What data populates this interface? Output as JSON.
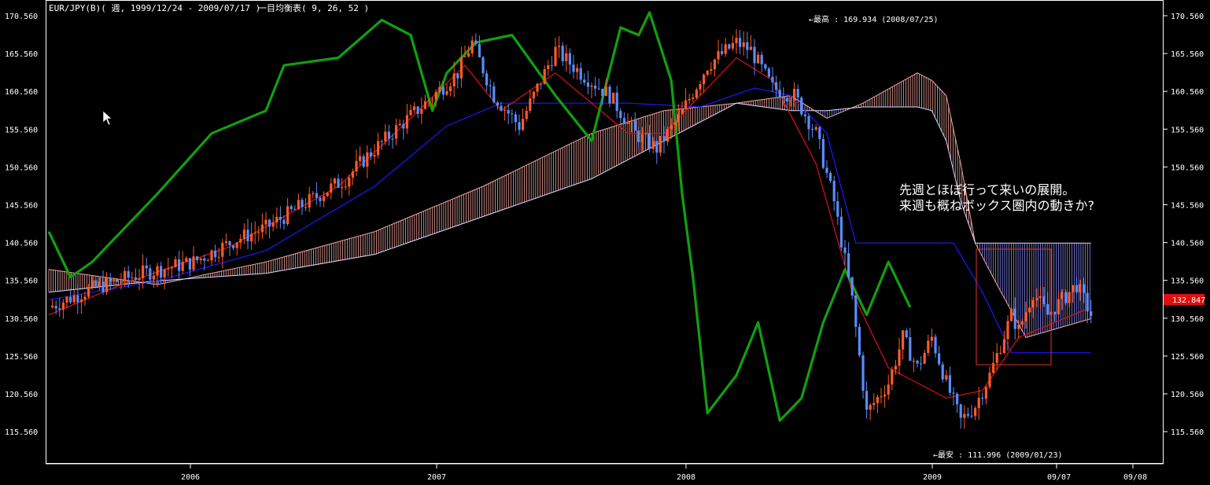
{
  "header": {
    "symbol": "EUR/JPY(B)( 週, 1999/12/24 - 2009/07/17 )",
    "indicator": "一目均衡表( 9, 26, 52 )"
  },
  "annotations": {
    "high": "←最高 : 169.934 (2008/07/25)",
    "low": "←最安 : 111.996 (2009/01/23)",
    "comment_line1": "先週とほぼ行って来いの展開。",
    "comment_line2": "来週も概ねボックス圏内の動きか?"
  },
  "colors": {
    "background": "#000000",
    "frame": "#ffffff",
    "up_candle": "#ff5a28",
    "down_candle": "#5a8cff",
    "tenkan": "#e01010",
    "kijun": "#1a1aff",
    "chikou": "#10a010",
    "cloud_bull": "#f0a6a0",
    "cloud_bear": "#8a8af8",
    "price_box": "#e03030",
    "current_price_bg": "#e01010"
  },
  "chart_data": {
    "type": "candlestick",
    "title": "EUR/JPY(B)( 週, 1999/12/24 - 2009/07/17 )",
    "ylim": [
      111.0,
      171.5
    ],
    "y_ticks": [
      "170.560",
      "165.560",
      "160.560",
      "155.560",
      "150.560",
      "145.560",
      "140.560",
      "135.560",
      "130.560",
      "125.560",
      "120.560",
      "115.560"
    ],
    "x_ticks": [
      "2006",
      "2007",
      "2008",
      "2009",
      "09/07",
      "09/08"
    ],
    "current_price": "132.847",
    "series": [
      {
        "name": "price",
        "path": [
          [
            0,
            132
          ],
          [
            12,
            134.5
          ],
          [
            26,
            136.5
          ],
          [
            40,
            138
          ],
          [
            52,
            141
          ],
          [
            60,
            142.5
          ],
          [
            70,
            145.5
          ],
          [
            82,
            149
          ],
          [
            88,
            152
          ],
          [
            97,
            156
          ],
          [
            104,
            159
          ],
          [
            113,
            163
          ],
          [
            117,
            167
          ],
          [
            123,
            160
          ],
          [
            130,
            156
          ],
          [
            136,
            162
          ],
          [
            140,
            166
          ],
          [
            147,
            163
          ],
          [
            155,
            160
          ],
          [
            162,
            155
          ],
          [
            168,
            153
          ],
          [
            174,
            157
          ],
          [
            182,
            164
          ],
          [
            190,
            167
          ],
          [
            194,
            166
          ],
          [
            200,
            161
          ],
          [
            206,
            160
          ],
          [
            212,
            155
          ],
          [
            217,
            146
          ],
          [
            222,
            133
          ],
          [
            226,
            118
          ],
          [
            232,
            122
          ],
          [
            236,
            128
          ],
          [
            240,
            124
          ],
          [
            244,
            128
          ],
          [
            248,
            122
          ],
          [
            252,
            117
          ],
          [
            256,
            119
          ],
          [
            260,
            123
          ],
          [
            263,
            127
          ],
          [
            266,
            131
          ],
          [
            268,
            129
          ],
          [
            272,
            134
          ],
          [
            276,
            131
          ],
          [
            280,
            133
          ],
          [
            284,
            135
          ],
          [
            288,
            131
          ]
        ]
      },
      {
        "name": "tenkan",
        "path": [
          [
            0,
            131
          ],
          [
            20,
            135
          ],
          [
            50,
            140
          ],
          [
            80,
            148
          ],
          [
            100,
            157
          ],
          [
            115,
            164
          ],
          [
            125,
            158
          ],
          [
            140,
            163
          ],
          [
            160,
            155
          ],
          [
            170,
            155
          ],
          [
            190,
            165
          ],
          [
            200,
            162
          ],
          [
            212,
            151
          ],
          [
            222,
            134
          ],
          [
            232,
            124
          ],
          [
            248,
            120
          ],
          [
            258,
            121
          ],
          [
            268,
            128
          ],
          [
            288,
            132
          ]
        ]
      },
      {
        "name": "kijun",
        "path": [
          [
            0,
            133
          ],
          [
            30,
            135.5
          ],
          [
            60,
            139.5
          ],
          [
            90,
            148
          ],
          [
            110,
            156
          ],
          [
            125,
            159
          ],
          [
            140,
            159
          ],
          [
            160,
            159
          ],
          [
            180,
            158.5
          ],
          [
            195,
            161
          ],
          [
            205,
            160
          ],
          [
            215,
            155
          ],
          [
            223,
            140.5
          ],
          [
            250,
            140.5
          ],
          [
            258,
            134
          ],
          [
            266,
            126
          ],
          [
            288,
            126
          ]
        ]
      },
      {
        "name": "chikou",
        "path": [
          [
            0,
            142
          ],
          [
            6,
            136
          ],
          [
            12,
            138
          ],
          [
            20,
            142
          ],
          [
            30,
            147
          ],
          [
            45,
            155
          ],
          [
            60,
            158
          ],
          [
            65,
            164
          ],
          [
            80,
            165
          ],
          [
            92,
            170
          ],
          [
            100,
            168
          ],
          [
            106,
            158
          ],
          [
            110,
            163
          ],
          [
            118,
            167
          ],
          [
            128,
            168
          ],
          [
            140,
            160
          ],
          [
            150,
            154
          ],
          [
            158,
            169
          ],
          [
            163,
            168
          ],
          [
            166,
            171
          ],
          [
            172,
            162
          ],
          [
            175,
            147
          ],
          [
            178,
            136
          ],
          [
            182,
            118
          ],
          [
            190,
            123
          ],
          [
            196,
            130
          ],
          [
            202,
            117
          ],
          [
            208,
            120
          ],
          [
            214,
            130
          ],
          [
            220,
            137
          ],
          [
            226,
            131
          ],
          [
            232,
            138
          ],
          [
            238,
            132
          ]
        ]
      },
      {
        "name": "cloud_span_a",
        "path": [
          [
            0,
            137
          ],
          [
            30,
            135
          ],
          [
            60,
            138
          ],
          [
            90,
            142
          ],
          [
            120,
            148
          ],
          [
            150,
            155
          ],
          [
            170,
            158
          ],
          [
            190,
            159
          ],
          [
            205,
            160
          ],
          [
            215,
            157
          ],
          [
            225,
            159
          ],
          [
            240,
            163
          ],
          [
            244,
            162
          ],
          [
            248,
            160
          ],
          [
            252,
            151
          ],
          [
            256,
            140.5
          ],
          [
            262,
            135
          ],
          [
            270,
            128
          ],
          [
            288,
            130.5
          ]
        ]
      },
      {
        "name": "cloud_span_b",
        "path": [
          [
            0,
            134
          ],
          [
            30,
            135.5
          ],
          [
            60,
            136.5
          ],
          [
            90,
            139
          ],
          [
            120,
            144
          ],
          [
            150,
            149
          ],
          [
            170,
            154
          ],
          [
            190,
            159
          ],
          [
            205,
            158
          ],
          [
            215,
            158
          ],
          [
            225,
            158.5
          ],
          [
            240,
            158.5
          ],
          [
            244,
            158
          ],
          [
            248,
            154
          ],
          [
            252,
            146
          ],
          [
            256,
            140.5
          ],
          [
            288,
            140.5
          ]
        ]
      }
    ]
  }
}
